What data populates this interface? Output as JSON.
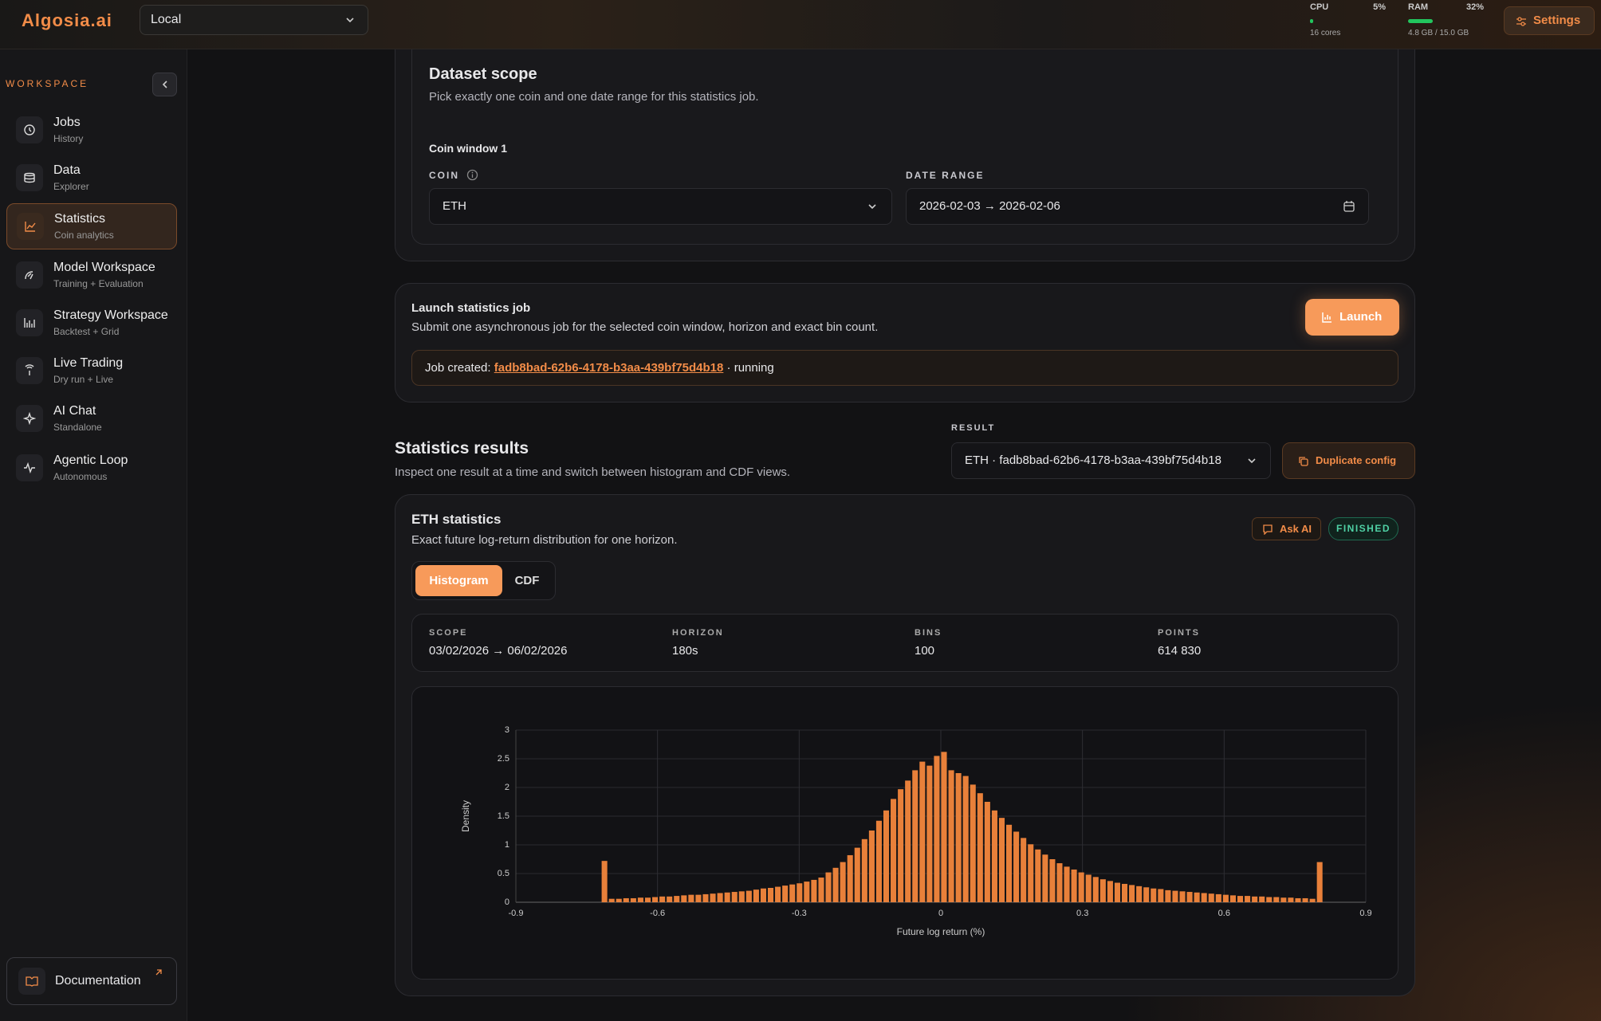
{
  "header": {
    "logo": "Algosia.ai",
    "environment": "Local",
    "cpu_label": "CPU",
    "cpu_value": "5%",
    "cpu_detail": "16 cores",
    "ram_label": "RAM",
    "ram_value": "32%",
    "ram_detail": "4.8 GB / 15.0 GB",
    "settings": "Settings"
  },
  "sidebar": {
    "section": "WORKSPACE",
    "items": [
      {
        "title": "Jobs",
        "subtitle": "History"
      },
      {
        "title": "Data",
        "subtitle": "Explorer"
      },
      {
        "title": "Statistics",
        "subtitle": "Coin analytics"
      },
      {
        "title": "Model Workspace",
        "subtitle": "Training + Evaluation"
      },
      {
        "title": "Strategy Workspace",
        "subtitle": "Backtest + Grid"
      },
      {
        "title": "Live Trading",
        "subtitle": "Dry run + Live"
      },
      {
        "title": "AI Chat",
        "subtitle": "Standalone"
      },
      {
        "title": "Agentic Loop",
        "subtitle": "Autonomous"
      }
    ],
    "documentation": "Documentation"
  },
  "dataset_scope": {
    "title": "Dataset scope",
    "subtitle": "Pick exactly one coin and one date range for this statistics job.",
    "window_title": "Coin window 1",
    "coin_label": "COIN",
    "coin_value": "ETH",
    "date_label": "DATE RANGE",
    "date_value": "2026-02-03 → 2026-02-06"
  },
  "launch": {
    "title": "Launch statistics job",
    "description": "Submit one asynchronous job for the selected coin window, horizon and exact bin count.",
    "button": "Launch",
    "job_prefix": "Job created:",
    "job_id": "fadb8bad-62b6-4178-b3aa-439bf75d4b18",
    "job_status": "· running"
  },
  "results": {
    "title": "Statistics results",
    "description": "Inspect one result at a time and switch between histogram and CDF views.",
    "result_label": "RESULT",
    "result_value": "ETH · fadb8bad-62b6-4178-b3aa-439bf75d4b18",
    "duplicate_button": "Duplicate config"
  },
  "stats_card": {
    "title": "ETH statistics",
    "description": "Exact future log-return distribution for one horizon.",
    "ask_ai": "Ask AI",
    "status": "FINISHED",
    "tabs": [
      "Histogram",
      "CDF"
    ],
    "stats": [
      {
        "label": "SCOPE",
        "value": "03/02/2026 → 06/02/2026"
      },
      {
        "label": "HORIZON",
        "value": "180s"
      },
      {
        "label": "BINS",
        "value": "100"
      },
      {
        "label": "POINTS",
        "value": "614 830"
      }
    ]
  },
  "chart_data": {
    "type": "histogram",
    "x_label": "Future log return (%)",
    "y_label": "Density",
    "color": "#e8803a",
    "grid": true,
    "xlim": [
      -0.9,
      0.9
    ],
    "ylim": [
      0,
      3
    ],
    "xticks": [
      -0.9,
      -0.6,
      -0.3,
      0,
      0.3,
      0.6,
      0.9
    ],
    "yticks": [
      0,
      0.5,
      1,
      1.5,
      2,
      2.5,
      3
    ],
    "bins": [
      -0.72,
      -0.7047,
      -0.6894,
      -0.6741,
      -0.6588,
      -0.6435,
      -0.6282,
      -0.6129,
      -0.5976,
      -0.5823,
      -0.567,
      -0.5517,
      -0.5364,
      -0.5211,
      -0.5058,
      -0.4905,
      -0.4752,
      -0.4599,
      -0.4446,
      -0.4293,
      -0.414,
      -0.3987,
      -0.3834,
      -0.3681,
      -0.3528,
      -0.3375,
      -0.3222,
      -0.3069,
      -0.2916,
      -0.2763,
      -0.261,
      -0.2457,
      -0.2304,
      -0.2151,
      -0.1998,
      -0.1845,
      -0.1692,
      -0.1539,
      -0.1386,
      -0.1233,
      -0.108,
      -0.0927,
      -0.0774,
      -0.0621,
      -0.0468,
      -0.0315,
      -0.0162,
      -0.0009,
      0.0144,
      0.0297,
      0.045,
      0.0603,
      0.0756,
      0.0909,
      0.1062,
      0.1215,
      0.1368,
      0.1521,
      0.1674,
      0.1827,
      0.198,
      0.2133,
      0.2286,
      0.2439,
      0.2592,
      0.2745,
      0.2898,
      0.3051,
      0.3204,
      0.3357,
      0.351,
      0.3663,
      0.3816,
      0.3969,
      0.4122,
      0.4275,
      0.4428,
      0.4581,
      0.4734,
      0.4887,
      0.504,
      0.5193,
      0.5346,
      0.5499,
      0.5652,
      0.5805,
      0.5958,
      0.6111,
      0.6264,
      0.6417,
      0.657,
      0.6723,
      0.6876,
      0.7029,
      0.7182,
      0.7335,
      0.7488,
      0.7641,
      0.7794,
      0.7947,
      0.81
    ],
    "values": [
      0.72,
      0.06,
      0.06,
      0.07,
      0.07,
      0.08,
      0.08,
      0.09,
      0.1,
      0.1,
      0.11,
      0.12,
      0.13,
      0.13,
      0.14,
      0.15,
      0.16,
      0.17,
      0.18,
      0.19,
      0.2,
      0.22,
      0.24,
      0.25,
      0.27,
      0.29,
      0.31,
      0.33,
      0.36,
      0.39,
      0.43,
      0.52,
      0.6,
      0.7,
      0.82,
      0.95,
      1.1,
      1.25,
      1.42,
      1.6,
      1.8,
      1.97,
      2.12,
      2.3,
      2.45,
      2.38,
      2.55,
      2.62,
      2.3,
      2.25,
      2.2,
      2.05,
      1.9,
      1.75,
      1.6,
      1.47,
      1.35,
      1.23,
      1.12,
      1.01,
      0.92,
      0.83,
      0.75,
      0.68,
      0.62,
      0.57,
      0.52,
      0.48,
      0.44,
      0.4,
      0.37,
      0.34,
      0.32,
      0.3,
      0.28,
      0.26,
      0.24,
      0.23,
      0.21,
      0.2,
      0.19,
      0.18,
      0.17,
      0.16,
      0.15,
      0.14,
      0.13,
      0.12,
      0.11,
      0.11,
      0.1,
      0.1,
      0.09,
      0.09,
      0.08,
      0.08,
      0.07,
      0.07,
      0.06,
      0.7
    ]
  }
}
